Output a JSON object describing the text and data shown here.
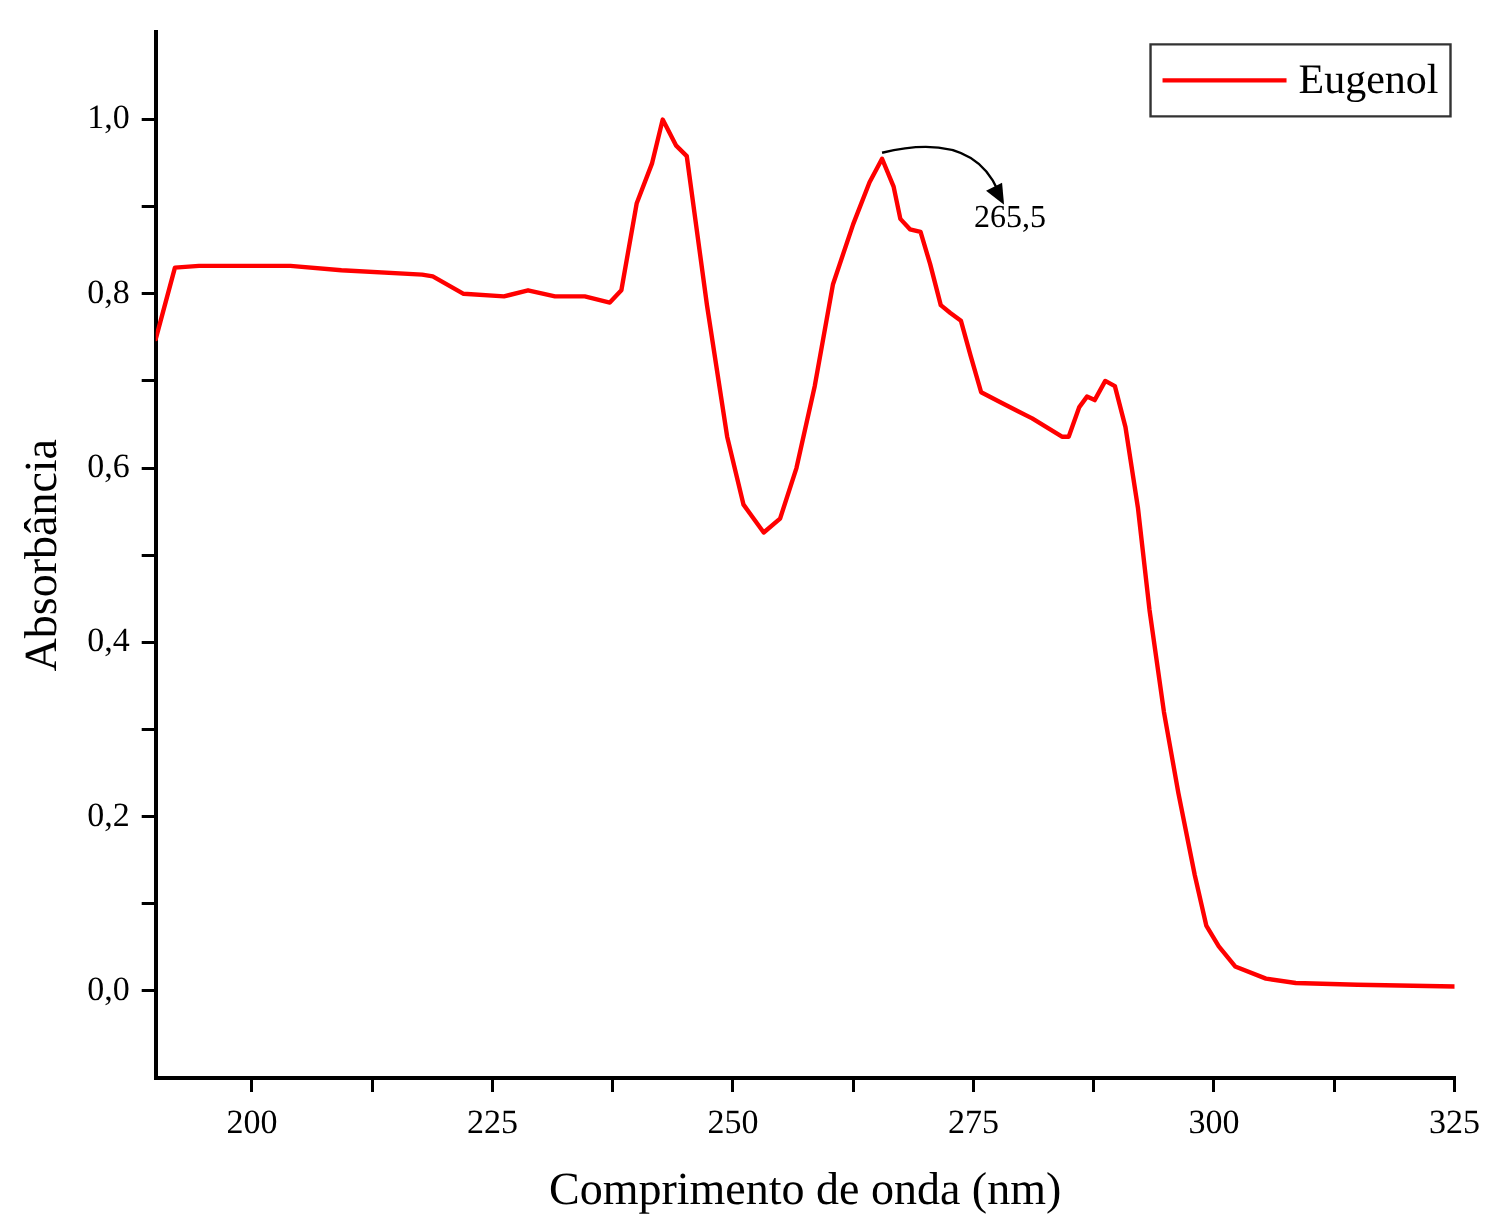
{
  "chart_data": {
    "type": "line",
    "xlabel": "Comprimento de onda (nm)",
    "ylabel": "Absorbância",
    "xlim": [
      190,
      325
    ],
    "xticks": [
      200,
      {
        "value": 212.5,
        "label": null
      },
      225,
      {
        "value": 237.5,
        "label": null
      },
      250,
      {
        "value": 262.5,
        "label": null
      },
      275,
      {
        "value": 287.5,
        "label": null
      },
      300,
      {
        "value": 312.5,
        "label": null
      },
      325
    ],
    "ylim": [
      -0.1,
      1.1
    ],
    "yticks": [
      {
        "value": 0,
        "label": "0,0"
      },
      {
        "value": 0.1,
        "label": null
      },
      {
        "value": 0.2,
        "label": "0,2"
      },
      {
        "value": 0.3,
        "label": null
      },
      {
        "value": 0.4,
        "label": "0,4"
      },
      {
        "value": 0.5,
        "label": null
      },
      {
        "value": 0.6,
        "label": "0,6"
      },
      {
        "value": 0.7,
        "label": null
      },
      {
        "value": 0.8,
        "label": "0,8"
      },
      {
        "value": 0.9,
        "label": null
      },
      {
        "value": 1.0,
        "label": "1,0"
      }
    ],
    "grid": false,
    "legend": "top right",
    "marker": "none",
    "line_style": "solid",
    "annotations": [
      {
        "text": "265,5",
        "x": 265.5,
        "y": 0.955
      }
    ],
    "series": [
      {
        "name": "Eugenol",
        "color": "#ff0000",
        "x": [
          190,
          192,
          194.5,
          200,
          204,
          209.3,
          217.7,
          218.8,
          222,
          226.2,
          228.7,
          231.5,
          234.6,
          237.2,
          238.4,
          240,
          241.6,
          242.7,
          244.1,
          245.2,
          247.3,
          249.4,
          251.1,
          253.2,
          254.9,
          256.6,
          258.5,
          260.4,
          262.5,
          264.2,
          265.5,
          266.7,
          267.4,
          268.4,
          269.5,
          270.5,
          271.6,
          272.6,
          273.7,
          274.7,
          275.8,
          277.9,
          281.1,
          284.2,
          284.9,
          286,
          286.8,
          287.6,
          288.7,
          289.7,
          290.8,
          292.1,
          293.3,
          294.8,
          296.3,
          298,
          299.2,
          300.5,
          302.2,
          305.4,
          308.5,
          314.9,
          325
        ],
        "values": [
          0.748,
          0.83,
          0.832,
          0.832,
          0.832,
          0.827,
          0.822,
          0.82,
          0.8,
          0.797,
          0.804,
          0.797,
          0.797,
          0.79,
          0.804,
          0.904,
          0.95,
          1.0,
          0.97,
          0.958,
          0.787,
          0.636,
          0.558,
          0.526,
          0.542,
          0.6,
          0.694,
          0.811,
          0.88,
          0.928,
          0.955,
          0.923,
          0.886,
          0.874,
          0.871,
          0.834,
          0.787,
          0.778,
          0.769,
          0.729,
          0.687,
          0.675,
          0.657,
          0.636,
          0.636,
          0.67,
          0.682,
          0.678,
          0.7,
          0.694,
          0.647,
          0.554,
          0.437,
          0.32,
          0.227,
          0.133,
          0.075,
          0.051,
          0.028,
          0.014,
          0.009,
          0.007,
          0.005
        ]
      }
    ]
  }
}
